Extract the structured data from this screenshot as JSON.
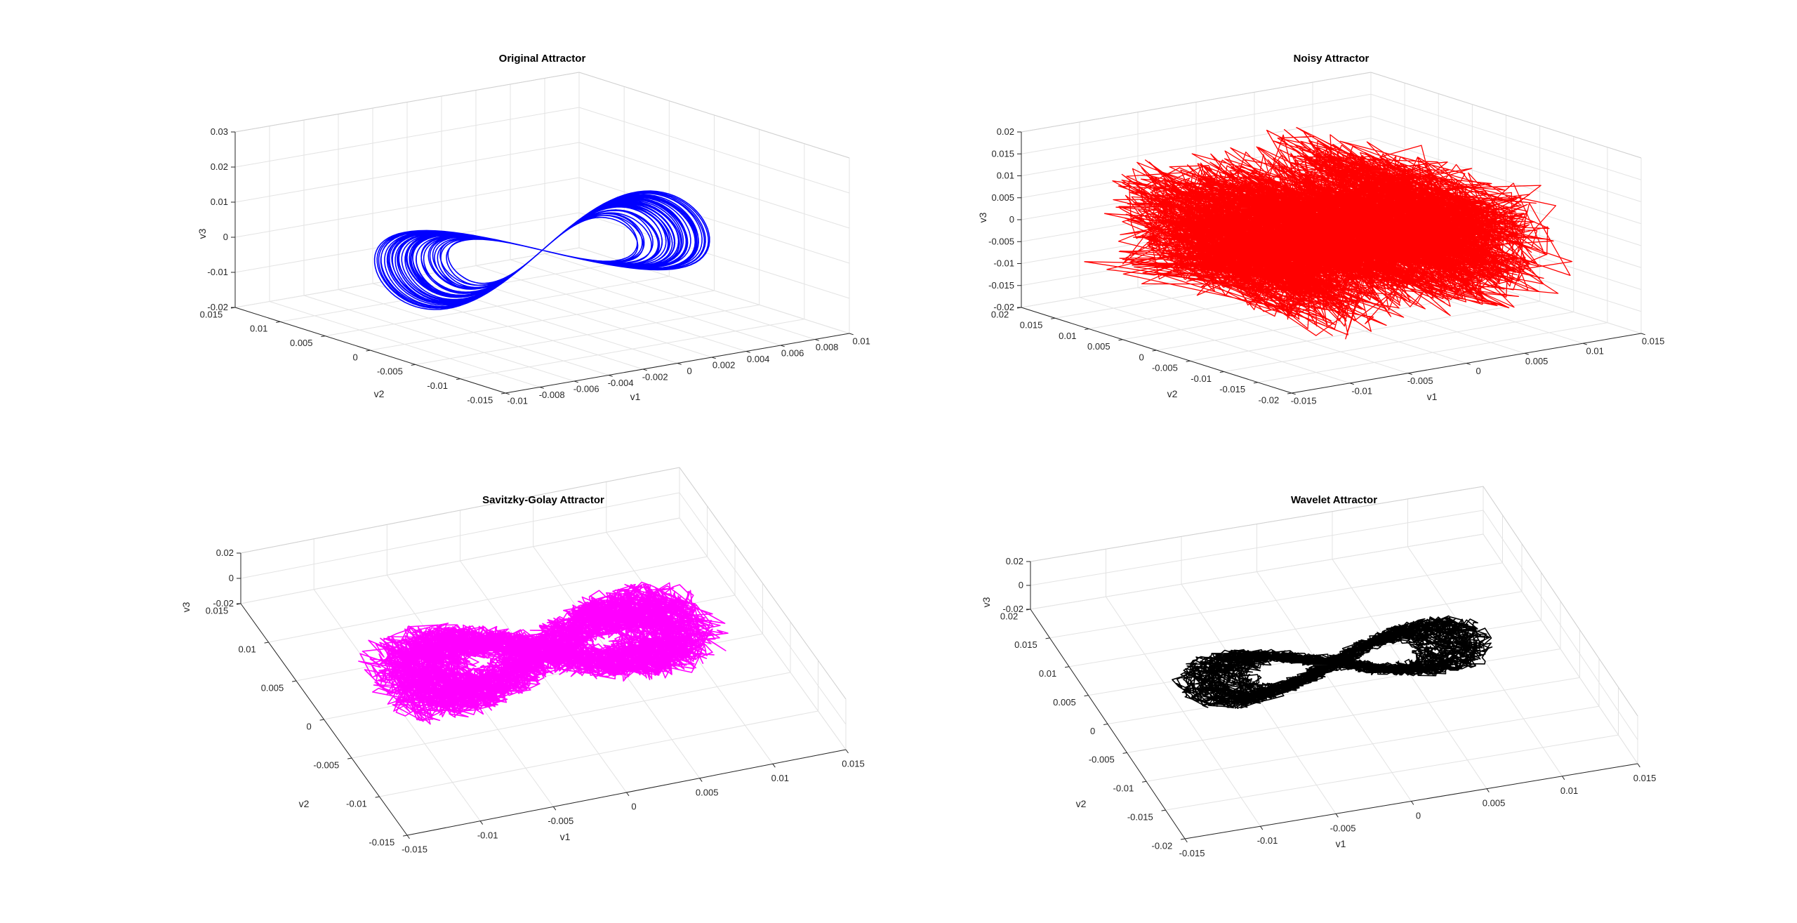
{
  "figure": {
    "background": "#ffffff"
  },
  "chart_data": [
    {
      "type": "line3d",
      "title": "Original Attractor",
      "xlabel": "v1",
      "ylabel": "v2",
      "zlabel": "v3",
      "xlim": [
        -0.01,
        0.01
      ],
      "ylim": [
        -0.015,
        0.015
      ],
      "zlim": [
        -0.02,
        0.03
      ],
      "xticks": [
        "-0.01",
        "-0.008",
        "-0.006",
        "-0.004",
        "-0.002",
        "0",
        "0.002",
        "0.004",
        "0.006",
        "0.008",
        "0.01"
      ],
      "yticks": [
        "-0.015",
        "-0.01",
        "-0.005",
        "0",
        "0.005",
        "0.01",
        "0.015"
      ],
      "zticks": [
        "-0.02",
        "-0.01",
        "0",
        "0.01",
        "0.02",
        "0.03"
      ],
      "grid": true,
      "series": [
        {
          "color": "#0000ff",
          "shape": "figure-eight",
          "noise": 0,
          "loops": 40,
          "center": [
            0,
            0.0,
            0.0
          ],
          "half_width": 0.0095,
          "lobe_height": 0.009
        }
      ]
    },
    {
      "type": "line3d",
      "title": "Noisy Attractor",
      "xlabel": "v1",
      "ylabel": "v2",
      "zlabel": "v3",
      "xlim": [
        -0.015,
        0.015
      ],
      "ylim": [
        -0.02,
        0.02
      ],
      "zlim": [
        -0.02,
        0.02
      ],
      "xticks": [
        "-0.015",
        "-0.01",
        "-0.005",
        "0",
        "0.005",
        "0.01",
        "0.015"
      ],
      "yticks": [
        "-0.02",
        "-0.015",
        "-0.01",
        "-0.005",
        "0",
        "0.005",
        "0.01",
        "0.015",
        "0.02"
      ],
      "zticks": [
        "-0.02",
        "-0.015",
        "-0.01",
        "-0.005",
        "0",
        "0.005",
        "0.01",
        "0.015",
        "0.02"
      ],
      "grid": true,
      "series": [
        {
          "color": "#ff0000",
          "shape": "noisy-cloud",
          "noise": 1,
          "loops": 40,
          "center": [
            0,
            0.0,
            0.0
          ],
          "half_width": 0.0105,
          "lobe_height": 0.008
        }
      ]
    },
    {
      "type": "line3d",
      "title": "Savitzky-Golay Attractor",
      "xlabel": "v1",
      "ylabel": "v2",
      "zlabel": "v3",
      "xlim": [
        -0.015,
        0.015
      ],
      "ylim": [
        -0.015,
        0.015
      ],
      "zlim": [
        -0.02,
        0.02
      ],
      "xticks": [
        "-0.015",
        "-0.01",
        "-0.005",
        "0",
        "0.005",
        "0.01",
        "0.015"
      ],
      "yticks": [
        "-0.015",
        "-0.01",
        "-0.005",
        "0",
        "0.005",
        "0.01",
        "0.015"
      ],
      "zticks": [
        "-0.02",
        "0",
        "0.02"
      ],
      "grid": true,
      "series": [
        {
          "color": "#ff00ff",
          "shape": "smoothed-tangle",
          "noise": 0.45,
          "loops": 45,
          "center": [
            0,
            0.0,
            0.0
          ],
          "half_width": 0.011,
          "lobe_height": 0.009
        }
      ]
    },
    {
      "type": "line3d",
      "title": "Wavelet Attractor",
      "xlabel": "v1",
      "ylabel": "v2",
      "zlabel": "v3",
      "xlim": [
        -0.015,
        0.015
      ],
      "ylim": [
        -0.02,
        0.02
      ],
      "zlim": [
        -0.02,
        0.02
      ],
      "xticks": [
        "-0.015",
        "-0.01",
        "-0.005",
        "0",
        "0.005",
        "0.01",
        "0.015"
      ],
      "yticks": [
        "-0.02",
        "-0.015",
        "-0.01",
        "-0.005",
        "0",
        "0.005",
        "0.01",
        "0.015",
        "0.02"
      ],
      "zticks": [
        "-0.02",
        "0",
        "0.02"
      ],
      "grid": true,
      "series": [
        {
          "color": "#000000",
          "shape": "denoised-figure-eight",
          "noise": 0.2,
          "loops": 40,
          "center": [
            0,
            0.0,
            0.0
          ],
          "half_width": 0.01,
          "lobe_height": 0.008
        }
      ]
    }
  ]
}
